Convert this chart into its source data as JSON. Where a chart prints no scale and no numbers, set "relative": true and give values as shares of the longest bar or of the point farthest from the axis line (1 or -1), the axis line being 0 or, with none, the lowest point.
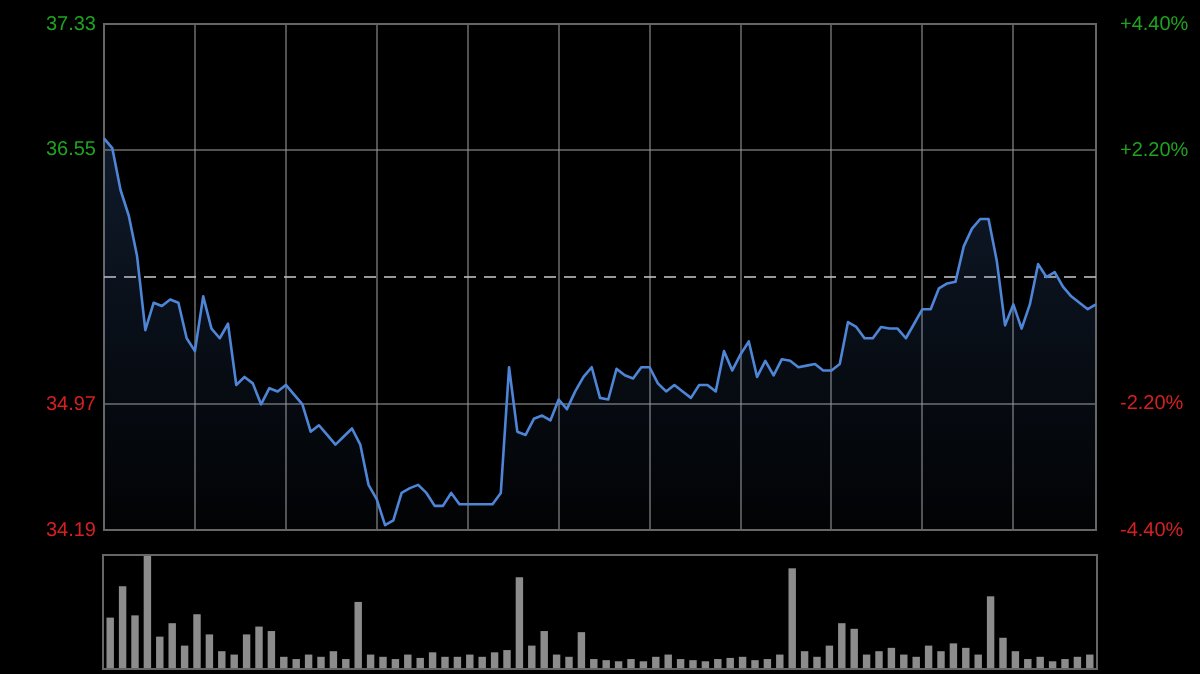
{
  "chart_data": [
    {
      "type": "area",
      "categories": [
        null,
        null,
        null,
        null,
        null,
        null,
        null,
        null,
        null,
        null,
        null,
        null,
        null,
        null,
        null,
        null,
        null,
        null,
        null,
        null,
        null,
        null,
        null,
        null,
        null,
        null,
        null,
        null,
        null,
        null,
        null,
        null,
        null,
        null,
        null,
        null,
        null,
        null,
        null,
        null,
        null,
        null,
        null,
        null,
        null,
        null,
        null,
        null,
        null,
        null,
        null,
        null,
        null,
        null,
        null,
        null,
        null,
        null,
        null,
        null,
        null,
        null,
        null,
        null,
        null,
        null,
        null,
        null,
        null,
        null,
        null,
        null,
        null,
        null,
        null,
        null,
        null,
        null,
        null,
        null,
        null,
        null,
        null,
        null,
        null,
        null,
        null,
        null,
        null,
        null,
        null,
        null,
        null,
        null,
        null,
        null,
        null,
        null,
        null,
        null,
        null,
        null,
        null,
        null,
        null,
        null,
        null,
        null,
        null,
        null,
        null,
        null,
        null,
        null,
        null,
        null,
        null,
        null,
        null,
        null,
        null
      ],
      "ylim": [
        34.19,
        37.33
      ],
      "yticks": [
        34.19,
        34.97,
        36.55,
        37.33
      ],
      "y2lim": [
        -4.4,
        4.4
      ],
      "y2ticks": [
        {
          "value": -4.4,
          "label": "-4.40%"
        },
        {
          "value": -2.2,
          "label": "-2.20%"
        },
        {
          "value": 2.2,
          "label": "+2.20%"
        },
        {
          "value": 4.4,
          "label": "+4.40%"
        }
      ],
      "tick_labels": "y",
      "grid": true,
      "marker": "none",
      "line_style": "solid",
      "ref_lines": [
        {
          "axis": "y",
          "value": 35.76,
          "line_style": "dashed"
        }
      ],
      "series": [
        {
          "color": "#4f85d6",
          "values": [
            36.62,
            36.56,
            36.3,
            36.14,
            35.89,
            35.43,
            35.6,
            35.58,
            35.62,
            35.6,
            35.38,
            35.3,
            35.64,
            35.44,
            35.38,
            35.47,
            35.09,
            35.14,
            35.1,
            34.97,
            35.07,
            35.05,
            35.09,
            35.03,
            34.97,
            34.8,
            34.84,
            34.78,
            34.72,
            34.77,
            34.82,
            34.72,
            34.47,
            34.38,
            34.22,
            34.25,
            34.42,
            34.45,
            34.47,
            34.42,
            34.34,
            34.34,
            34.42,
            34.35,
            34.35,
            34.35,
            34.35,
            34.35,
            34.42,
            35.2,
            34.8,
            34.78,
            34.88,
            34.9,
            34.87,
            35.0,
            34.94,
            35.05,
            35.14,
            35.2,
            35.01,
            35.0,
            35.19,
            35.15,
            35.13,
            35.2,
            35.2,
            35.1,
            35.05,
            35.09,
            35.05,
            35.01,
            35.09,
            35.09,
            35.05,
            35.3,
            35.18,
            35.28,
            35.36,
            35.14,
            35.24,
            35.15,
            35.25,
            35.24,
            35.2,
            35.21,
            35.22,
            35.18,
            35.18,
            35.22,
            35.48,
            35.45,
            35.38,
            35.38,
            35.45,
            35.44,
            35.44,
            35.38,
            35.47,
            35.56,
            35.56,
            35.69,
            35.72,
            35.73,
            35.95,
            36.06,
            36.12,
            36.12,
            35.86,
            35.46,
            35.59,
            35.44,
            35.59,
            35.84,
            35.76,
            35.79,
            35.7,
            35.64,
            35.6,
            35.56,
            35.59
          ]
        }
      ]
    },
    {
      "type": "bar",
      "relative": true,
      "categories": [
        null,
        null,
        null,
        null,
        null,
        null,
        null,
        null,
        null,
        null,
        null,
        null,
        null,
        null,
        null,
        null,
        null,
        null,
        null,
        null,
        null,
        null,
        null,
        null,
        null,
        null,
        null,
        null,
        null,
        null,
        null,
        null,
        null,
        null,
        null,
        null,
        null,
        null,
        null,
        null,
        null,
        null,
        null,
        null,
        null,
        null,
        null,
        null,
        null,
        null,
        null,
        null,
        null,
        null,
        null,
        null,
        null,
        null,
        null,
        null,
        null,
        null,
        null,
        null,
        null,
        null,
        null,
        null,
        null,
        null,
        null,
        null,
        null,
        null,
        null,
        null,
        null,
        null,
        null,
        null
      ],
      "series": [
        {
          "color": "#8c8c8c",
          "values": [
            0.45,
            0.73,
            0.47,
            1.0,
            0.28,
            0.4,
            0.2,
            0.48,
            0.3,
            0.15,
            0.12,
            0.3,
            0.37,
            0.33,
            0.1,
            0.08,
            0.12,
            0.1,
            0.15,
            0.08,
            0.59,
            0.12,
            0.1,
            0.08,
            0.12,
            0.09,
            0.14,
            0.1,
            0.1,
            0.12,
            0.1,
            0.14,
            0.16,
            0.81,
            0.2,
            0.33,
            0.12,
            0.1,
            0.32,
            0.08,
            0.07,
            0.06,
            0.08,
            0.06,
            0.1,
            0.12,
            0.08,
            0.07,
            0.06,
            0.08,
            0.09,
            0.1,
            0.07,
            0.08,
            0.12,
            0.89,
            0.15,
            0.1,
            0.2,
            0.4,
            0.35,
            0.12,
            0.15,
            0.18,
            0.12,
            0.1,
            0.2,
            0.15,
            0.22,
            0.18,
            0.12,
            0.64,
            0.27,
            0.15,
            0.08,
            0.1,
            0.06,
            0.08,
            0.1,
            0.12
          ]
        }
      ]
    }
  ]
}
